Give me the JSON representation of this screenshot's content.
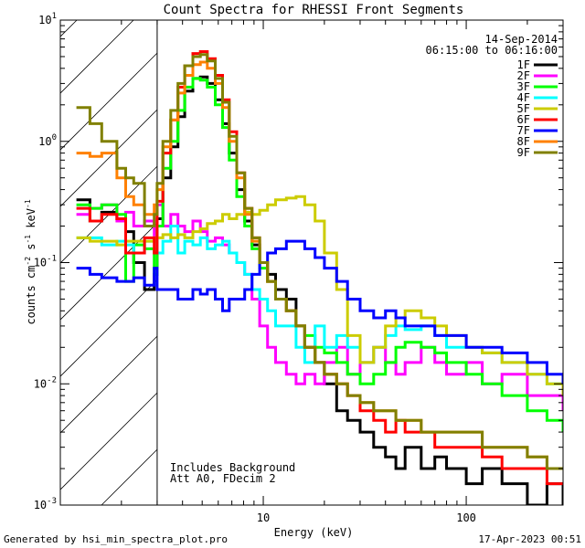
{
  "chart_data": {
    "type": "line",
    "title": "Count Spectra for RHESSI Front Segments",
    "xlabel": "Energy (keV)",
    "ylabel": "counts cm-2 s-1 keV-1",
    "ylabel_parts": {
      "base": "counts cm",
      "e1": "-2",
      "mid": " s",
      "e2": "-1",
      "tail": " keV",
      "e3": "-1"
    },
    "xscale": "log",
    "yscale": "log",
    "xlim": [
      1.0,
      300.0
    ],
    "ylim": [
      0.001,
      10.0
    ],
    "xticks": [
      10,
      100
    ],
    "yticks": [
      {
        "value": 10,
        "base": "10",
        "exp": "1"
      },
      {
        "value": 1,
        "base": "10",
        "exp": "0"
      },
      {
        "value": 0.1,
        "base": "10",
        "exp": "-1"
      },
      {
        "value": 0.01,
        "base": "10",
        "exp": "-2"
      },
      {
        "value": 0.001,
        "base": "10",
        "exp": "-3"
      }
    ],
    "attenuator_region_kev": [
      1.0,
      3.0
    ],
    "date": "14-Sep-2014",
    "time_range": "06:15:00 to 06:16:00",
    "annotations": [
      "Includes Background",
      "Att A0, FDecim 2"
    ],
    "footer_left": "Generated by hsi_min_spectra_plot.pro",
    "footer_right": "17-Apr-2023 00:51",
    "series": [
      {
        "name": "1F",
        "color": "#000000",
        "x": [
          1.2,
          1.4,
          1.6,
          1.9,
          2.1,
          2.3,
          2.6,
          2.9,
          3.0,
          3.2,
          3.5,
          3.8,
          4.1,
          4.5,
          4.9,
          5.3,
          5.8,
          6.3,
          6.8,
          7.4,
          8.1,
          8.8,
          9.6,
          10.5,
          11.5,
          13,
          14.5,
          16,
          18,
          20,
          23,
          26,
          30,
          35,
          40,
          45,
          50,
          60,
          70,
          80,
          100,
          120,
          150,
          200,
          250,
          300
        ],
        "y": [
          0.33,
          0.22,
          0.26,
          0.23,
          0.18,
          0.1,
          0.06,
          0.08,
          0.23,
          0.5,
          0.9,
          1.6,
          2.6,
          3.3,
          3.4,
          3.0,
          2.2,
          1.4,
          0.8,
          0.4,
          0.22,
          0.14,
          0.1,
          0.08,
          0.06,
          0.05,
          0.03,
          0.02,
          0.015,
          0.01,
          0.006,
          0.005,
          0.004,
          0.003,
          0.0025,
          0.002,
          0.003,
          0.002,
          0.0025,
          0.002,
          0.0015,
          0.002,
          0.0015,
          0.001,
          0.0015,
          0.001
        ]
      },
      {
        "name": "2F",
        "color": "#ff00ff",
        "x": [
          1.2,
          1.4,
          1.6,
          1.9,
          2.1,
          2.3,
          2.6,
          2.9,
          3.0,
          3.2,
          3.5,
          3.8,
          4.1,
          4.5,
          4.9,
          5.3,
          5.8,
          6.3,
          6.8,
          7.4,
          8.1,
          8.8,
          9.6,
          10.5,
          11.5,
          13,
          14.5,
          16,
          18,
          20,
          23,
          26,
          30,
          35,
          40,
          45,
          50,
          60,
          70,
          80,
          100,
          120,
          150,
          200,
          250,
          300
        ],
        "y": [
          0.25,
          0.28,
          0.3,
          0.22,
          0.26,
          0.2,
          0.22,
          0.16,
          0.3,
          0.2,
          0.25,
          0.2,
          0.18,
          0.22,
          0.18,
          0.15,
          0.16,
          0.14,
          0.12,
          0.1,
          0.08,
          0.05,
          0.03,
          0.02,
          0.015,
          0.012,
          0.01,
          0.012,
          0.01,
          0.015,
          0.02,
          0.012,
          0.015,
          0.02,
          0.015,
          0.012,
          0.015,
          0.02,
          0.015,
          0.012,
          0.015,
          0.01,
          0.012,
          0.008,
          0.008,
          0.006
        ]
      },
      {
        "name": "3F",
        "color": "#00ff00",
        "x": [
          1.2,
          1.4,
          1.6,
          1.9,
          2.1,
          2.3,
          2.6,
          2.9,
          3.0,
          3.2,
          3.5,
          3.8,
          4.1,
          4.5,
          4.9,
          5.3,
          5.8,
          6.3,
          6.8,
          7.4,
          8.1,
          8.8,
          9.6,
          10.5,
          11.5,
          13,
          14.5,
          16,
          18,
          20,
          23,
          26,
          30,
          35,
          40,
          45,
          50,
          60,
          70,
          80,
          100,
          120,
          150,
          200,
          250,
          300
        ],
        "y": [
          0.3,
          0.28,
          0.3,
          0.25,
          0.07,
          0.14,
          0.13,
          0.08,
          0.2,
          0.6,
          1.0,
          1.8,
          2.8,
          3.3,
          3.2,
          2.8,
          2.0,
          1.3,
          0.7,
          0.35,
          0.2,
          0.13,
          0.09,
          0.07,
          0.05,
          0.04,
          0.03,
          0.025,
          0.02,
          0.018,
          0.015,
          0.012,
          0.01,
          0.012,
          0.015,
          0.02,
          0.022,
          0.02,
          0.018,
          0.015,
          0.012,
          0.01,
          0.008,
          0.006,
          0.005,
          0.004
        ]
      },
      {
        "name": "4F",
        "color": "#00ffff",
        "x": [
          1.2,
          1.4,
          1.6,
          1.9,
          2.1,
          2.3,
          2.6,
          2.9,
          3.0,
          3.2,
          3.5,
          3.8,
          4.1,
          4.5,
          4.9,
          5.3,
          5.8,
          6.3,
          6.8,
          7.4,
          8.1,
          8.8,
          9.6,
          10.5,
          11.5,
          13,
          14.5,
          16,
          18,
          20,
          23,
          26,
          30,
          35,
          40,
          45,
          50,
          60,
          70,
          80,
          100,
          120,
          150,
          200,
          250,
          300
        ],
        "y": [
          0.16,
          0.16,
          0.14,
          0.15,
          0.14,
          0.12,
          0.15,
          0.16,
          0.12,
          0.15,
          0.2,
          0.12,
          0.15,
          0.14,
          0.16,
          0.13,
          0.14,
          0.15,
          0.12,
          0.1,
          0.08,
          0.06,
          0.05,
          0.04,
          0.03,
          0.03,
          0.02,
          0.015,
          0.03,
          0.02,
          0.025,
          0.02,
          0.015,
          0.02,
          0.025,
          0.03,
          0.028,
          0.03,
          0.025,
          0.02,
          0.02,
          0.018,
          0.015,
          0.012,
          0.01,
          0.008
        ]
      },
      {
        "name": "5F",
        "color": "#cccc00",
        "x": [
          1.2,
          1.4,
          1.6,
          1.9,
          2.1,
          2.3,
          2.6,
          2.9,
          3.0,
          3.2,
          3.5,
          3.8,
          4.1,
          4.5,
          4.9,
          5.3,
          5.8,
          6.3,
          6.8,
          7.4,
          8.1,
          8.8,
          9.6,
          10.5,
          11.5,
          13,
          14.5,
          16,
          18,
          20,
          23,
          26,
          30,
          35,
          40,
          45,
          50,
          60,
          70,
          80,
          100,
          120,
          150,
          200,
          250,
          300
        ],
        "y": [
          0.16,
          0.15,
          0.15,
          0.14,
          0.15,
          0.15,
          0.15,
          0.16,
          0.16,
          0.17,
          0.16,
          0.17,
          0.16,
          0.18,
          0.19,
          0.21,
          0.22,
          0.25,
          0.23,
          0.25,
          0.26,
          0.25,
          0.27,
          0.3,
          0.33,
          0.34,
          0.35,
          0.3,
          0.22,
          0.12,
          0.06,
          0.025,
          0.015,
          0.02,
          0.03,
          0.035,
          0.04,
          0.035,
          0.03,
          0.025,
          0.02,
          0.018,
          0.015,
          0.012,
          0.01,
          0.008
        ]
      },
      {
        "name": "6F",
        "color": "#ff0000",
        "x": [
          1.2,
          1.4,
          1.6,
          1.9,
          2.1,
          2.3,
          2.6,
          2.9,
          3.0,
          3.2,
          3.5,
          3.8,
          4.1,
          4.5,
          4.9,
          5.3,
          5.8,
          6.3,
          6.8,
          7.4,
          8.1,
          8.8,
          9.6,
          10.5,
          11.5,
          13,
          14.5,
          16,
          18,
          20,
          23,
          26,
          30,
          35,
          40,
          45,
          50,
          60,
          70,
          80,
          100,
          120,
          150,
          200,
          250,
          300
        ],
        "y": [
          0.28,
          0.22,
          0.25,
          0.23,
          0.12,
          0.12,
          0.16,
          0.12,
          0.32,
          0.8,
          1.5,
          2.8,
          4.2,
          5.3,
          5.5,
          4.8,
          3.5,
          2.2,
          1.2,
          0.55,
          0.28,
          0.16,
          0.1,
          0.07,
          0.05,
          0.04,
          0.03,
          0.02,
          0.015,
          0.012,
          0.01,
          0.008,
          0.006,
          0.005,
          0.004,
          0.005,
          0.004,
          0.004,
          0.003,
          0.003,
          0.003,
          0.0025,
          0.002,
          0.002,
          0.0015,
          0.0015
        ]
      },
      {
        "name": "7F",
        "color": "#0000ff",
        "x": [
          1.2,
          1.4,
          1.6,
          1.9,
          2.1,
          2.3,
          2.6,
          2.9,
          3.0,
          3.2,
          3.5,
          3.8,
          4.1,
          4.5,
          4.9,
          5.3,
          5.8,
          6.3,
          6.8,
          7.4,
          8.1,
          8.8,
          9.6,
          10.5,
          11.5,
          13,
          14.5,
          16,
          18,
          20,
          23,
          26,
          30,
          35,
          40,
          45,
          50,
          60,
          70,
          80,
          100,
          120,
          150,
          200,
          250,
          300
        ],
        "y": [
          0.09,
          0.08,
          0.075,
          0.07,
          0.07,
          0.075,
          0.065,
          0.09,
          0.06,
          0.06,
          0.06,
          0.05,
          0.05,
          0.06,
          0.055,
          0.06,
          0.05,
          0.04,
          0.05,
          0.05,
          0.06,
          0.08,
          0.1,
          0.12,
          0.13,
          0.15,
          0.15,
          0.13,
          0.11,
          0.09,
          0.07,
          0.05,
          0.04,
          0.035,
          0.04,
          0.035,
          0.03,
          0.03,
          0.025,
          0.025,
          0.02,
          0.02,
          0.018,
          0.015,
          0.012,
          0.01
        ]
      },
      {
        "name": "8F",
        "color": "#ff8000",
        "x": [
          1.2,
          1.4,
          1.6,
          1.9,
          2.1,
          2.3,
          2.6,
          2.9,
          3.0,
          3.2,
          3.5,
          3.8,
          4.1,
          4.5,
          4.9,
          5.3,
          5.8,
          6.3,
          6.8,
          7.4,
          8.1,
          8.8,
          9.6,
          10.5,
          11.5,
          13,
          14.5,
          16,
          18,
          20,
          23,
          26,
          30,
          35,
          40,
          45,
          50,
          60,
          70,
          80,
          100,
          120,
          150,
          200,
          250,
          300
        ],
        "y": [
          0.8,
          0.75,
          0.8,
          0.5,
          0.35,
          0.3,
          0.25,
          0.3,
          0.4,
          0.9,
          1.5,
          2.5,
          3.5,
          4.3,
          4.5,
          4.0,
          3.0,
          1.9,
          1.0,
          0.5,
          0.25,
          0.15,
          0.1,
          0.07,
          0.05,
          0.04,
          0.03,
          0.02,
          0.015,
          0.012,
          0.01,
          0.008,
          0.007,
          0.006,
          0.006,
          0.005,
          0.005,
          0.004,
          0.004,
          0.004,
          0.004,
          0.003,
          0.003,
          0.0025,
          0.002,
          0.002
        ]
      },
      {
        "name": "9F",
        "color": "#808000",
        "x": [
          1.2,
          1.4,
          1.6,
          1.9,
          2.1,
          2.3,
          2.6,
          2.9,
          3.0,
          3.2,
          3.5,
          3.8,
          4.1,
          4.5,
          4.9,
          5.3,
          5.8,
          6.3,
          6.8,
          7.4,
          8.1,
          8.8,
          9.6,
          10.5,
          11.5,
          13,
          14.5,
          16,
          18,
          20,
          23,
          26,
          30,
          35,
          40,
          45,
          50,
          60,
          70,
          80,
          100,
          120,
          150,
          200,
          250,
          300
        ],
        "y": [
          1.9,
          1.4,
          1.0,
          0.6,
          0.5,
          0.45,
          0.2,
          0.25,
          0.45,
          1.0,
          1.8,
          3.0,
          4.2,
          5.0,
          5.2,
          4.6,
          3.3,
          2.1,
          1.1,
          0.55,
          0.28,
          0.16,
          0.1,
          0.07,
          0.05,
          0.04,
          0.03,
          0.02,
          0.015,
          0.012,
          0.01,
          0.008,
          0.007,
          0.006,
          0.006,
          0.005,
          0.005,
          0.004,
          0.004,
          0.004,
          0.004,
          0.003,
          0.003,
          0.0025,
          0.002,
          0.002
        ]
      }
    ]
  }
}
